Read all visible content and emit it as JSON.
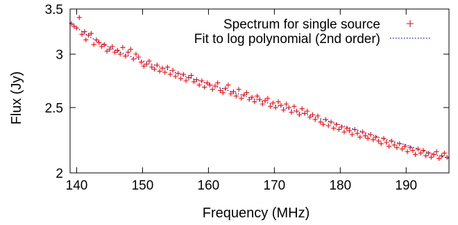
{
  "chart_data": {
    "type": "scatter",
    "title": "",
    "xlabel": "Frequency (MHz)",
    "ylabel": "Flux (Jy)",
    "xlim": [
      139,
      196.5
    ],
    "ylim": [
      2.0,
      3.5
    ],
    "y_scale": "log",
    "x_ticks": [
      140,
      150,
      160,
      170,
      180,
      190
    ],
    "x_tick_labels": [
      "140",
      "150",
      "160",
      "170",
      "180",
      "190"
    ],
    "y_ticks": [
      2.0,
      2.5,
      3.0,
      3.5
    ],
    "y_tick_labels": [
      "2",
      "2.5",
      "3",
      "3.5"
    ],
    "grid": false,
    "legend_position": "top-right",
    "colors": {
      "spectrum": "#ff0000",
      "fit": "#0000ff"
    },
    "series": [
      {
        "name": "Spectrum for single source",
        "style": "points",
        "marker": "plus",
        "color": "#ff0000",
        "x": [
          139.2,
          139.6,
          140.0,
          140.4,
          140.8,
          141.2,
          141.4,
          141.8,
          142.2,
          142.6,
          143.0,
          143.4,
          143.8,
          144.2,
          144.6,
          145.0,
          145.4,
          145.8,
          146.2,
          146.6,
          147.0,
          147.4,
          147.8,
          148.2,
          148.6,
          149.0,
          149.4,
          149.8,
          150.2,
          150.6,
          151.0,
          151.4,
          151.8,
          152.2,
          152.6,
          153.0,
          153.4,
          153.8,
          154.2,
          154.6,
          155.0,
          155.4,
          155.8,
          156.2,
          156.6,
          157.0,
          157.4,
          157.8,
          158.2,
          158.6,
          159.0,
          159.4,
          159.8,
          160.2,
          160.6,
          161.0,
          161.4,
          161.8,
          162.2,
          162.6,
          163.0,
          163.4,
          163.8,
          164.2,
          164.6,
          165.0,
          165.4,
          165.8,
          166.2,
          166.6,
          167.0,
          167.4,
          167.8,
          168.2,
          168.6,
          169.0,
          169.4,
          169.8,
          170.2,
          170.6,
          171.0,
          171.4,
          171.8,
          172.2,
          172.6,
          173.0,
          173.4,
          173.8,
          174.2,
          174.6,
          175.0,
          175.4,
          175.8,
          176.2,
          176.6,
          177.0,
          177.4,
          177.8,
          178.2,
          178.6,
          179.0,
          179.4,
          179.8,
          180.2,
          180.6,
          181.0,
          181.4,
          181.8,
          182.2,
          182.6,
          183.0,
          183.4,
          183.8,
          184.2,
          184.6,
          185.0,
          185.4,
          185.8,
          186.2,
          186.6,
          187.0,
          187.4,
          187.8,
          188.2,
          188.6,
          189.0,
          189.4,
          189.8,
          190.2,
          190.6,
          191.0,
          191.4,
          191.8,
          192.2,
          192.6,
          193.0,
          193.4,
          193.8,
          194.2,
          194.6,
          195.0,
          195.4,
          195.8,
          196.2
        ],
        "y": [
          3.33,
          3.3,
          3.28,
          3.4,
          3.21,
          3.24,
          3.15,
          3.2,
          3.22,
          3.1,
          3.15,
          3.12,
          3.08,
          3.1,
          3.03,
          3.05,
          3.08,
          3.02,
          3.04,
          3.0,
          3.07,
          2.98,
          3.02,
          3.05,
          2.95,
          3.0,
          2.97,
          2.92,
          2.88,
          2.9,
          2.93,
          2.87,
          2.85,
          2.89,
          2.83,
          2.86,
          2.82,
          2.87,
          2.8,
          2.84,
          2.78,
          2.81,
          2.76,
          2.8,
          2.74,
          2.77,
          2.79,
          2.73,
          2.75,
          2.7,
          2.74,
          2.68,
          2.72,
          2.7,
          2.66,
          2.69,
          2.72,
          2.65,
          2.63,
          2.67,
          2.7,
          2.62,
          2.64,
          2.6,
          2.66,
          2.58,
          2.61,
          2.63,
          2.57,
          2.59,
          2.55,
          2.6,
          2.57,
          2.53,
          2.56,
          2.58,
          2.51,
          2.54,
          2.5,
          2.55,
          2.52,
          2.48,
          2.53,
          2.5,
          2.46,
          2.51,
          2.47,
          2.44,
          2.49,
          2.45,
          2.47,
          2.42,
          2.44,
          2.4,
          2.43,
          2.38,
          2.36,
          2.4,
          2.35,
          2.38,
          2.33,
          2.36,
          2.32,
          2.34,
          2.3,
          2.33,
          2.31,
          2.28,
          2.32,
          2.29,
          2.26,
          2.3,
          2.27,
          2.25,
          2.28,
          2.24,
          2.26,
          2.23,
          2.21,
          2.25,
          2.22,
          2.19,
          2.23,
          2.2,
          2.18,
          2.21,
          2.17,
          2.19,
          2.15,
          2.18,
          2.16,
          2.13,
          2.17,
          2.14,
          2.16,
          2.12,
          2.14,
          2.11,
          2.13,
          2.15,
          2.1,
          2.12,
          2.14,
          2.11
        ]
      },
      {
        "name": "Fit to log polynomial (2nd order)",
        "style": "line",
        "dash": "dotted",
        "color": "#0000ff",
        "x": [
          139,
          142,
          145,
          148,
          151,
          154,
          157,
          160,
          163,
          166,
          169,
          172,
          175,
          178,
          181,
          184,
          187,
          190,
          193,
          196.5
        ],
        "y": [
          3.34,
          3.18,
          3.07,
          2.98,
          2.91,
          2.84,
          2.77,
          2.71,
          2.65,
          2.59,
          2.54,
          2.49,
          2.44,
          2.39,
          2.34,
          2.29,
          2.24,
          2.2,
          2.15,
          2.1
        ]
      }
    ]
  }
}
